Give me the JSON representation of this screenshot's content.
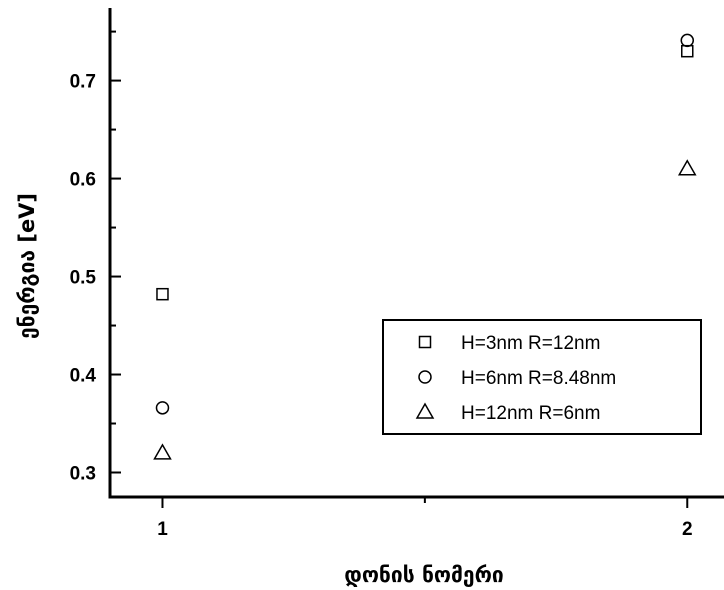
{
  "chart_data": {
    "type": "scatter",
    "xlabel": "დონის ნომერი",
    "ylabel": "ენერგია [eV]",
    "xlim": [
      0.9,
      2.07
    ],
    "ylim": [
      0.275,
      0.77
    ],
    "x_ticks": [
      1,
      2
    ],
    "y_ticks": [
      0.3,
      0.4,
      0.5,
      0.6,
      0.7
    ],
    "y_tick_labels": [
      "0.3",
      "0.4",
      "0.5",
      "0.6",
      "0.7"
    ],
    "x_tick_labels": [
      "1",
      "2"
    ],
    "legend_position": "lower-right",
    "series": [
      {
        "name": "H=3nm R=12nm",
        "marker": "square",
        "x": [
          1,
          2
        ],
        "y": [
          0.482,
          0.73
        ]
      },
      {
        "name": "H=6nm R=8.48nm",
        "marker": "circle",
        "x": [
          1,
          2
        ],
        "y": [
          0.366,
          0.741
        ]
      },
      {
        "name": "H=12nm R=6nm",
        "marker": "triangle",
        "x": [
          1,
          2
        ],
        "y": [
          0.32,
          0.61
        ]
      }
    ]
  }
}
